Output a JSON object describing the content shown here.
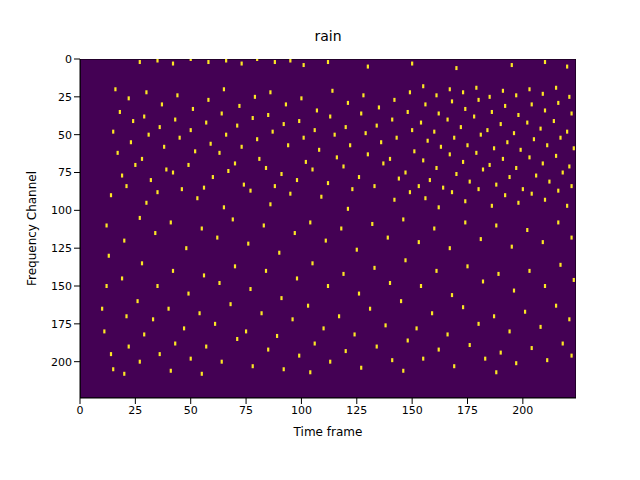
{
  "chart_data": {
    "type": "heatmap",
    "title": "rain",
    "x_label": "Time frame",
    "y_label": "Frequency Channel",
    "color": "#fde725",
    "xlim": [
      0,
      224
    ],
    "ylim": [
      0,
      224
    ],
    "xticks": [
      0,
      25,
      50,
      75,
      100,
      125,
      150,
      175,
      200
    ],
    "yticks": [
      0,
      25,
      50,
      75,
      100,
      125,
      150,
      175,
      200
    ],
    "cells": [
      [
        27,
        2
      ],
      [
        35,
        1
      ],
      [
        42,
        3
      ],
      [
        50,
        0
      ],
      [
        58,
        2
      ],
      [
        66,
        1
      ],
      [
        73,
        3
      ],
      [
        80,
        0
      ],
      [
        88,
        2
      ],
      [
        95,
        1
      ],
      [
        101,
        4
      ],
      [
        112,
        2
      ],
      [
        130,
        5
      ],
      [
        150,
        3
      ],
      [
        170,
        6
      ],
      [
        195,
        4
      ],
      [
        210,
        2
      ],
      [
        220,
        5
      ],
      [
        16,
        20
      ],
      [
        18,
        35
      ],
      [
        15,
        48
      ],
      [
        17,
        62
      ],
      [
        19,
        77
      ],
      [
        14,
        90
      ],
      [
        22,
        26
      ],
      [
        24,
        41
      ],
      [
        23,
        55
      ],
      [
        25,
        70
      ],
      [
        21,
        84
      ],
      [
        30,
        22
      ],
      [
        29,
        38
      ],
      [
        31,
        50
      ],
      [
        28,
        66
      ],
      [
        32,
        80
      ],
      [
        30,
        95
      ],
      [
        37,
        30
      ],
      [
        36,
        45
      ],
      [
        38,
        58
      ],
      [
        39,
        73
      ],
      [
        35,
        88
      ],
      [
        44,
        24
      ],
      [
        43,
        40
      ],
      [
        45,
        52
      ],
      [
        42,
        75
      ],
      [
        46,
        86
      ],
      [
        51,
        33
      ],
      [
        50,
        47
      ],
      [
        52,
        61
      ],
      [
        49,
        70
      ],
      [
        53,
        92
      ],
      [
        58,
        27
      ],
      [
        57,
        42
      ],
      [
        59,
        56
      ],
      [
        60,
        78
      ],
      [
        56,
        85
      ],
      [
        65,
        20
      ],
      [
        64,
        36
      ],
      [
        66,
        50
      ],
      [
        63,
        62
      ],
      [
        67,
        74
      ],
      [
        65,
        98
      ],
      [
        72,
        31
      ],
      [
        71,
        44
      ],
      [
        73,
        58
      ],
      [
        70,
        69
      ],
      [
        74,
        83
      ],
      [
        79,
        25
      ],
      [
        78,
        39
      ],
      [
        80,
        53
      ],
      [
        81,
        66
      ],
      [
        77,
        87
      ],
      [
        86,
        22
      ],
      [
        85,
        37
      ],
      [
        87,
        48
      ],
      [
        84,
        72
      ],
      [
        88,
        84
      ],
      [
        86,
        96
      ],
      [
        93,
        30
      ],
      [
        92,
        43
      ],
      [
        94,
        57
      ],
      [
        91,
        76
      ],
      [
        95,
        89
      ],
      [
        100,
        26
      ],
      [
        99,
        41
      ],
      [
        101,
        52
      ],
      [
        102,
        68
      ],
      [
        98,
        80
      ],
      [
        107,
        34
      ],
      [
        106,
        47
      ],
      [
        108,
        60
      ],
      [
        105,
        73
      ],
      [
        109,
        91
      ],
      [
        114,
        21
      ],
      [
        113,
        38
      ],
      [
        115,
        50
      ],
      [
        116,
        65
      ],
      [
        112,
        82
      ],
      [
        121,
        29
      ],
      [
        120,
        45
      ],
      [
        122,
        57
      ],
      [
        119,
        71
      ],
      [
        123,
        86
      ],
      [
        121,
        99
      ],
      [
        128,
        24
      ],
      [
        127,
        36
      ],
      [
        129,
        49
      ],
      [
        130,
        63
      ],
      [
        126,
        78
      ],
      [
        135,
        32
      ],
      [
        134,
        44
      ],
      [
        136,
        55
      ],
      [
        137,
        69
      ],
      [
        133,
        84
      ],
      [
        142,
        27
      ],
      [
        141,
        40
      ],
      [
        143,
        52
      ],
      [
        140,
        66
      ],
      [
        144,
        79
      ],
      [
        142,
        93
      ],
      [
        149,
        22
      ],
      [
        148,
        35
      ],
      [
        150,
        47
      ],
      [
        151,
        61
      ],
      [
        147,
        75
      ],
      [
        149,
        88
      ],
      [
        155,
        18
      ],
      [
        156,
        30
      ],
      [
        154,
        42
      ],
      [
        157,
        54
      ],
      [
        155,
        67
      ],
      [
        158,
        80
      ],
      [
        156,
        92
      ],
      [
        153,
        84
      ],
      [
        161,
        24
      ],
      [
        162,
        36
      ],
      [
        160,
        48
      ],
      [
        163,
        58
      ],
      [
        161,
        72
      ],
      [
        164,
        85
      ],
      [
        162,
        98
      ],
      [
        167,
        20
      ],
      [
        168,
        28
      ],
      [
        166,
        40
      ],
      [
        169,
        52
      ],
      [
        167,
        63
      ],
      [
        170,
        76
      ],
      [
        168,
        88
      ],
      [
        173,
        22
      ],
      [
        174,
        33
      ],
      [
        172,
        45
      ],
      [
        175,
        57
      ],
      [
        173,
        68
      ],
      [
        176,
        81
      ],
      [
        174,
        94
      ],
      [
        179,
        19
      ],
      [
        180,
        27
      ],
      [
        178,
        38
      ],
      [
        181,
        50
      ],
      [
        179,
        62
      ],
      [
        182,
        73
      ],
      [
        180,
        86
      ],
      [
        185,
        25
      ],
      [
        186,
        35
      ],
      [
        184,
        47
      ],
      [
        187,
        59
      ],
      [
        185,
        70
      ],
      [
        188,
        83
      ],
      [
        186,
        97
      ],
      [
        191,
        21
      ],
      [
        192,
        31
      ],
      [
        190,
        43
      ],
      [
        193,
        55
      ],
      [
        191,
        66
      ],
      [
        194,
        78
      ],
      [
        192,
        90
      ],
      [
        197,
        24
      ],
      [
        198,
        37
      ],
      [
        196,
        49
      ],
      [
        199,
        60
      ],
      [
        197,
        72
      ],
      [
        200,
        86
      ],
      [
        198,
        95
      ],
      [
        203,
        20
      ],
      [
        204,
        30
      ],
      [
        202,
        42
      ],
      [
        205,
        53
      ],
      [
        203,
        65
      ],
      [
        206,
        77
      ],
      [
        204,
        89
      ],
      [
        209,
        23
      ],
      [
        210,
        34
      ],
      [
        208,
        46
      ],
      [
        211,
        57
      ],
      [
        209,
        69
      ],
      [
        212,
        81
      ],
      [
        210,
        93
      ],
      [
        215,
        19
      ],
      [
        216,
        29
      ],
      [
        214,
        41
      ],
      [
        217,
        52
      ],
      [
        215,
        64
      ],
      [
        218,
        75
      ],
      [
        216,
        87
      ],
      [
        221,
        25
      ],
      [
        222,
        36
      ],
      [
        220,
        48
      ],
      [
        223,
        59
      ],
      [
        221,
        71
      ],
      [
        222,
        84
      ],
      [
        220,
        97
      ],
      [
        10,
        165
      ],
      [
        12,
        150
      ],
      [
        11,
        180
      ],
      [
        13,
        130
      ],
      [
        12,
        110
      ],
      [
        14,
        195
      ],
      [
        15,
        205
      ],
      [
        20,
        120
      ],
      [
        19,
        145
      ],
      [
        21,
        170
      ],
      [
        22,
        190
      ],
      [
        20,
        208
      ],
      [
        27,
        105
      ],
      [
        28,
        135
      ],
      [
        26,
        160
      ],
      [
        29,
        182
      ],
      [
        27,
        200
      ],
      [
        34,
        115
      ],
      [
        35,
        150
      ],
      [
        33,
        172
      ],
      [
        36,
        195
      ],
      [
        41,
        108
      ],
      [
        42,
        140
      ],
      [
        40,
        165
      ],
      [
        43,
        188
      ],
      [
        41,
        206
      ],
      [
        48,
        125
      ],
      [
        49,
        155
      ],
      [
        47,
        178
      ],
      [
        50,
        198
      ],
      [
        55,
        112
      ],
      [
        56,
        143
      ],
      [
        54,
        168
      ],
      [
        57,
        190
      ],
      [
        55,
        208
      ],
      [
        62,
        118
      ],
      [
        63,
        148
      ],
      [
        61,
        175
      ],
      [
        64,
        200
      ],
      [
        69,
        106
      ],
      [
        70,
        137
      ],
      [
        68,
        162
      ],
      [
        71,
        185
      ],
      [
        76,
        122
      ],
      [
        77,
        152
      ],
      [
        75,
        180
      ],
      [
        78,
        203
      ],
      [
        83,
        110
      ],
      [
        84,
        140
      ],
      [
        82,
        168
      ],
      [
        85,
        192
      ],
      [
        90,
        128
      ],
      [
        91,
        158
      ],
      [
        89,
        183
      ],
      [
        92,
        205
      ],
      [
        97,
        115
      ],
      [
        98,
        145
      ],
      [
        96,
        172
      ],
      [
        99,
        196
      ],
      [
        104,
        108
      ],
      [
        105,
        135
      ],
      [
        103,
        163
      ],
      [
        106,
        188
      ],
      [
        104,
        207
      ],
      [
        111,
        120
      ],
      [
        112,
        150
      ],
      [
        110,
        178
      ],
      [
        113,
        200
      ],
      [
        118,
        112
      ],
      [
        119,
        142
      ],
      [
        117,
        170
      ],
      [
        120,
        193
      ],
      [
        125,
        126
      ],
      [
        126,
        155
      ],
      [
        124,
        182
      ],
      [
        127,
        204
      ],
      [
        132,
        109
      ],
      [
        133,
        138
      ],
      [
        131,
        165
      ],
      [
        134,
        190
      ],
      [
        139,
        118
      ],
      [
        140,
        148
      ],
      [
        138,
        176
      ],
      [
        141,
        199
      ],
      [
        146,
        106
      ],
      [
        147,
        133
      ],
      [
        145,
        160
      ],
      [
        148,
        186
      ],
      [
        146,
        206
      ],
      [
        153,
        121
      ],
      [
        154,
        150
      ],
      [
        152,
        178
      ],
      [
        155,
        198
      ],
      [
        160,
        112
      ],
      [
        161,
        140
      ],
      [
        159,
        168
      ],
      [
        162,
        192
      ],
      [
        167,
        125
      ],
      [
        168,
        156
      ],
      [
        166,
        182
      ],
      [
        169,
        203
      ],
      [
        174,
        108
      ],
      [
        175,
        137
      ],
      [
        173,
        164
      ],
      [
        176,
        189
      ],
      [
        181,
        119
      ],
      [
        182,
        147
      ],
      [
        180,
        175
      ],
      [
        183,
        198
      ],
      [
        188,
        110
      ],
      [
        189,
        142
      ],
      [
        187,
        170
      ],
      [
        190,
        194
      ],
      [
        188,
        207
      ],
      [
        195,
        124
      ],
      [
        196,
        153
      ],
      [
        194,
        180
      ],
      [
        197,
        201
      ],
      [
        202,
        113
      ],
      [
        203,
        140
      ],
      [
        201,
        167
      ],
      [
        204,
        191
      ],
      [
        209,
        121
      ],
      [
        210,
        150
      ],
      [
        208,
        177
      ],
      [
        211,
        199
      ],
      [
        216,
        108
      ],
      [
        217,
        136
      ],
      [
        215,
        163
      ],
      [
        218,
        188
      ],
      [
        222,
        118
      ],
      [
        223,
        146
      ],
      [
        221,
        172
      ],
      [
        222,
        196
      ]
    ]
  }
}
